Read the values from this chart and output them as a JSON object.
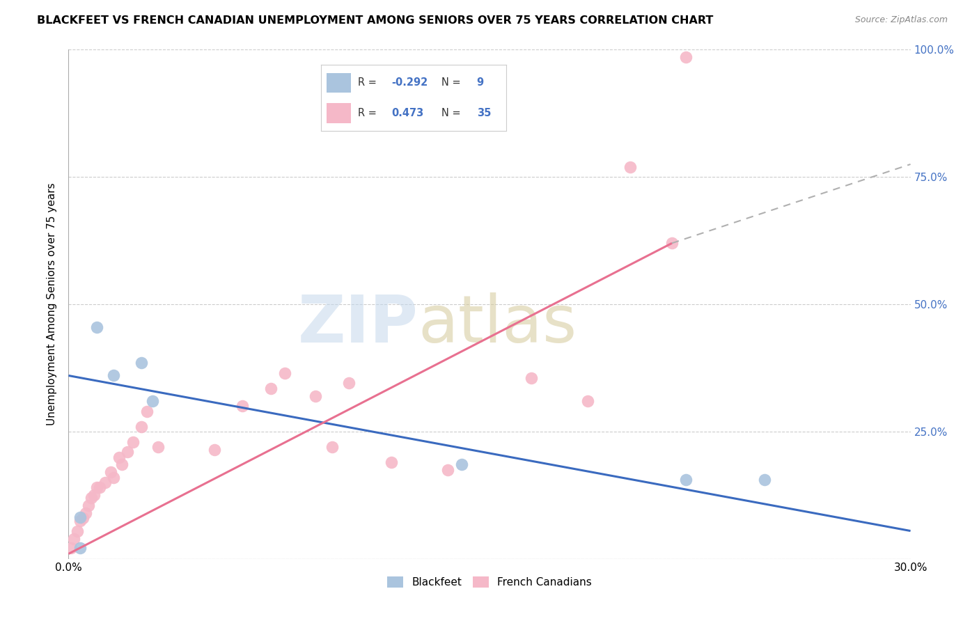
{
  "title": "BLACKFEET VS FRENCH CANADIAN UNEMPLOYMENT AMONG SENIORS OVER 75 YEARS CORRELATION CHART",
  "source": "Source: ZipAtlas.com",
  "ylabel": "Unemployment Among Seniors over 75 years",
  "xlim": [
    0.0,
    0.3
  ],
  "ylim": [
    0.0,
    1.0
  ],
  "ytick_positions": [
    1.0,
    0.75,
    0.5,
    0.25,
    0.0
  ],
  "ytick_labels_right": [
    "100.0%",
    "75.0%",
    "50.0%",
    "25.0%",
    ""
  ],
  "xtick_positions": [
    0.0,
    0.05,
    0.1,
    0.15,
    0.2,
    0.25,
    0.3
  ],
  "xtick_labels": [
    "0.0%",
    "",
    "",
    "",
    "",
    "",
    "30.0%"
  ],
  "blackfeet_R": -0.292,
  "blackfeet_N": 9,
  "french_R": 0.473,
  "french_N": 35,
  "blackfeet_color": "#aac4de",
  "french_color": "#f5b8c8",
  "blackfeet_line_color": "#3a6abf",
  "french_line_color": "#e87090",
  "blackfeet_points_x": [
    0.004,
    0.004,
    0.01,
    0.016,
    0.026,
    0.03,
    0.14,
    0.22,
    0.248
  ],
  "blackfeet_points_y": [
    0.022,
    0.082,
    0.455,
    0.36,
    0.385,
    0.31,
    0.185,
    0.155,
    0.155
  ],
  "french_points_x": [
    0.001,
    0.002,
    0.003,
    0.004,
    0.005,
    0.006,
    0.007,
    0.008,
    0.009,
    0.01,
    0.011,
    0.013,
    0.015,
    0.016,
    0.018,
    0.019,
    0.021,
    0.023,
    0.026,
    0.028,
    0.032,
    0.052,
    0.062,
    0.072,
    0.077,
    0.088,
    0.094,
    0.1,
    0.115,
    0.135,
    0.165,
    0.185,
    0.2,
    0.215,
    0.22
  ],
  "french_points_y": [
    0.022,
    0.04,
    0.055,
    0.075,
    0.08,
    0.09,
    0.105,
    0.12,
    0.125,
    0.14,
    0.14,
    0.15,
    0.17,
    0.16,
    0.2,
    0.185,
    0.21,
    0.23,
    0.26,
    0.29,
    0.22,
    0.215,
    0.3,
    0.335,
    0.365,
    0.32,
    0.22,
    0.345,
    0.19,
    0.175,
    0.355,
    0.31,
    0.77,
    0.62,
    0.985
  ],
  "blackfeet_trend_x": [
    0.0,
    0.3
  ],
  "blackfeet_trend_y": [
    0.36,
    0.055
  ],
  "french_trend_x": [
    0.0,
    0.215
  ],
  "french_trend_y": [
    0.01,
    0.62
  ],
  "dashed_trend_x": [
    0.215,
    0.3
  ],
  "dashed_trend_y": [
    0.62,
    0.775
  ],
  "watermark": "ZIPatlas",
  "background_color": "#ffffff",
  "grid_color": "#cccccc"
}
